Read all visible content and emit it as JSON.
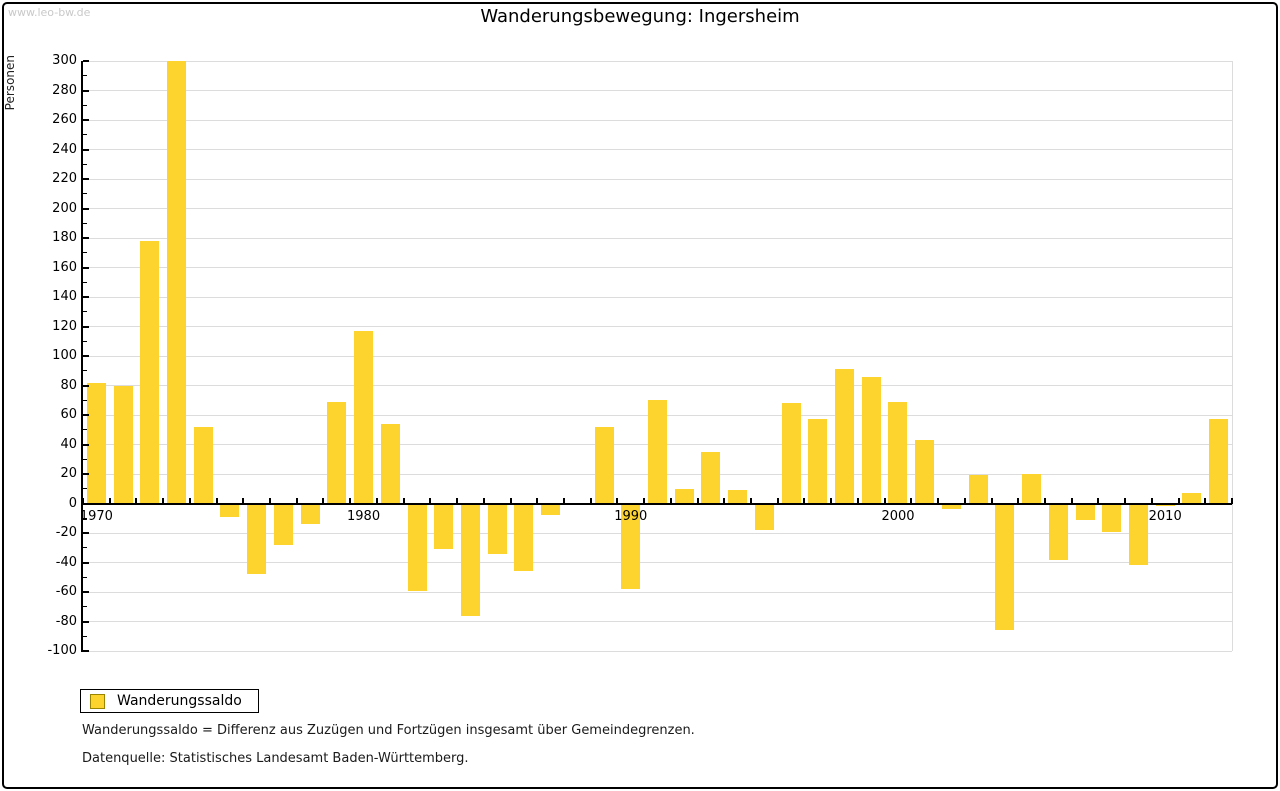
{
  "watermark": "www.leo-bw.de",
  "title": "Wanderungsbewegung: Ingersheim",
  "legend": {
    "label": "Wanderungssaldo"
  },
  "footnotes": [
    "Wanderungssaldo = Differenz aus Zuzügen und Fortzügen insgesamt über Gemeindegrenzen.",
    "Datenquelle: Statistisches Landesamt Baden-Württemberg."
  ],
  "colors": {
    "bar": "#FCD42D",
    "grid": "#DCDCDC",
    "axis": "#000000",
    "watermark": "#C9C9C9"
  },
  "chart_data": {
    "type": "bar",
    "title": "Wanderungsbewegung: Ingersheim",
    "xlabel": "",
    "ylabel": "Personen",
    "series_name": "Wanderungssaldo",
    "ylim": [
      -100,
      300
    ],
    "ytick_step": 20,
    "ytick_minor_step": 10,
    "grid": true,
    "legend_position": "bottom-left",
    "x_labels": [
      1970,
      1980,
      1990,
      2000,
      2010
    ],
    "years": [
      1970,
      1971,
      1972,
      1973,
      1974,
      1975,
      1976,
      1977,
      1978,
      1979,
      1980,
      1981,
      1982,
      1983,
      1984,
      1985,
      1986,
      1987,
      1988,
      1989,
      1990,
      1991,
      1992,
      1993,
      1994,
      1995,
      1996,
      1997,
      1998,
      1999,
      2000,
      2001,
      2002,
      2003,
      2004,
      2005,
      2006,
      2007,
      2008,
      2009,
      2010,
      2011,
      2012
    ],
    "values": [
      82,
      80,
      178,
      300,
      52,
      -9,
      -48,
      -28,
      -14,
      69,
      117,
      54,
      -59,
      -31,
      -76,
      -34,
      -46,
      -8,
      0,
      52,
      -58,
      70,
      10,
      35,
      9,
      -18,
      68,
      57,
      91,
      86,
      69,
      43,
      -4,
      19,
      -86,
      20,
      -38,
      -11,
      -19,
      -42,
      -2,
      7,
      57
    ]
  }
}
